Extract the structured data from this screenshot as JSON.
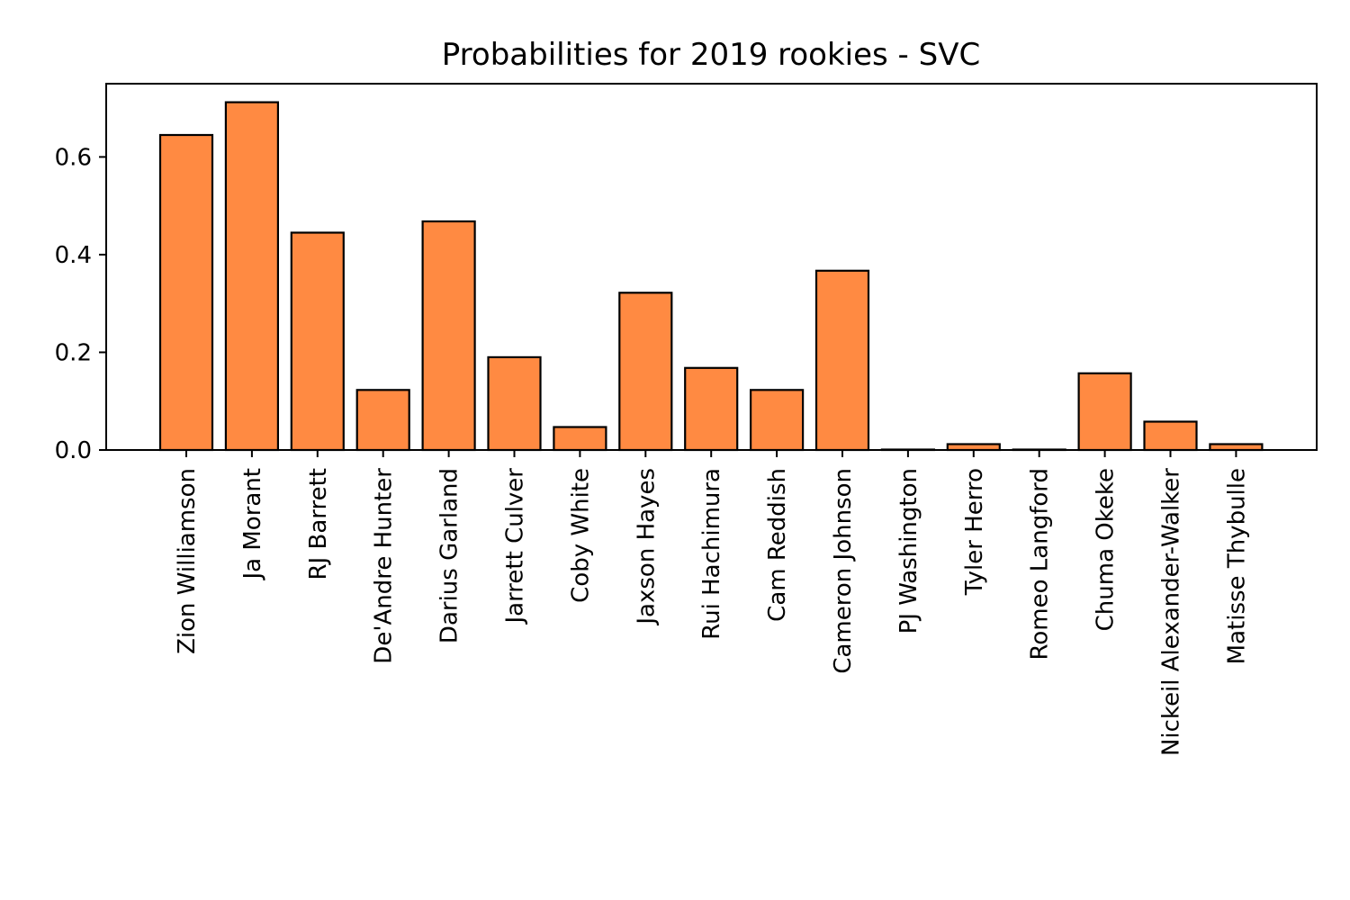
{
  "chart_data": {
    "type": "bar",
    "title": "Probabilities for 2019 rookies - SVC",
    "xlabel": "",
    "ylabel": "",
    "ylim": [
      0,
      0.75
    ],
    "yticks": [
      0.0,
      0.2,
      0.4,
      0.6
    ],
    "ytick_labels": [
      "0.0",
      "0.2",
      "0.4",
      "0.6"
    ],
    "grid": false,
    "bar_color": "#FF8A42",
    "categories": [
      "Zion Williamson",
      "Ja Morant",
      "RJ Barrett",
      "De'Andre Hunter",
      "Darius Garland",
      "Jarrett Culver",
      "Coby White",
      "Jaxson Hayes",
      "Rui Hachimura",
      "Cam Reddish",
      "Cameron Johnson",
      "PJ Washington",
      "Tyler Herro",
      "Romeo Langford",
      "Chuma Okeke",
      "Nickeil Alexander-Walker",
      "Matisse Thybulle"
    ],
    "values": [
      0.645,
      0.712,
      0.445,
      0.123,
      0.468,
      0.19,
      0.047,
      0.322,
      0.168,
      0.123,
      0.367,
      0.001,
      0.012,
      0.001,
      0.157,
      0.058,
      0.012
    ]
  }
}
